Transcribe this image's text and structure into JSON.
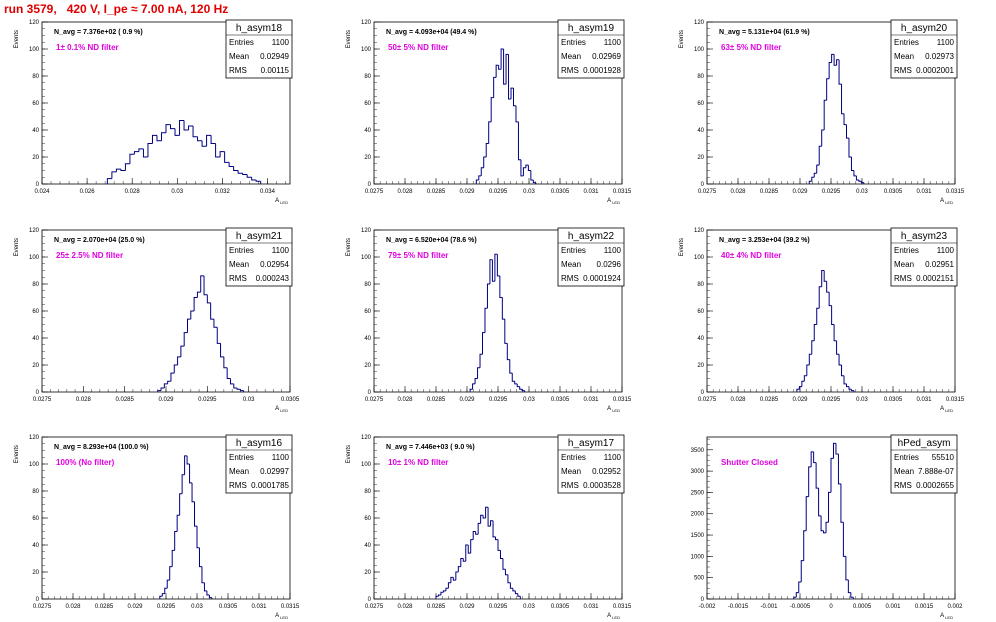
{
  "page": {
    "title": "run 3579,   420 V, I_pe ≈ 7.00 nA, 120 Hz"
  },
  "colors": {
    "histogram": "#000080",
    "annotation": "#e000e0",
    "title": "#e00000",
    "axis": "#000000"
  },
  "chart_data": [
    {
      "type": "bar",
      "histogram": "h_asym18",
      "xlabel": "A_LED",
      "ylabel": "Events",
      "xlim": [
        0.024,
        0.035
      ],
      "ylim": [
        0,
        120
      ],
      "xticks": [
        0.024,
        0.026,
        0.028,
        0.03,
        0.032,
        0.034
      ],
      "xticklabels": [
        "0.024",
        "0.026",
        "0.028",
        "0.03",
        "0.032",
        "0.034"
      ],
      "yticks": [
        0,
        20,
        40,
        60,
        80,
        100,
        120
      ],
      "navg": "N_avg = 7.376e+02 ( 0.9 %)",
      "filter": "1± 0.1% ND filter",
      "stats": {
        "entries": "1100",
        "mean": "0.02949",
        "rms": "0.00115"
      },
      "bins": {
        "start": 0.0269,
        "width": 0.0002,
        "values": [
          4,
          9,
          11,
          10,
          15,
          22,
          24,
          26,
          20,
          30,
          36,
          32,
          38,
          44,
          41,
          36,
          47,
          40,
          43,
          35,
          32,
          28,
          36,
          30,
          20,
          24,
          16,
          13,
          10,
          8,
          7,
          5,
          3,
          2
        ]
      }
    },
    {
      "type": "bar",
      "histogram": "h_asym19",
      "xlabel": "A_LED",
      "ylabel": "Events",
      "xlim": [
        0.0275,
        0.0315
      ],
      "ylim": [
        0,
        120
      ],
      "xticks": [
        0.0275,
        0.028,
        0.0285,
        0.029,
        0.0295,
        0.03,
        0.0305,
        0.031,
        0.0315
      ],
      "xticklabels": [
        "0.0275",
        "0.028",
        "0.0285",
        "0.029",
        "0.0295",
        "0.03",
        "0.0305",
        "0.031",
        "0.0315"
      ],
      "yticks": [
        0,
        20,
        40,
        60,
        80,
        100,
        120
      ],
      "navg": "N_avg = 4.093e+04 (49.4 %)",
      "filter": "50± 5% ND filter",
      "stats": {
        "entries": "1100",
        "mean": "0.02969",
        "rms": "0.0001928"
      },
      "bins": {
        "start": 0.02915,
        "width": 4e-05,
        "values": [
          3,
          6,
          12,
          20,
          30,
          46,
          64,
          79,
          88,
          85,
          100,
          74,
          96,
          63,
          71,
          58,
          46,
          18,
          6,
          12,
          14,
          10,
          3,
          1
        ]
      }
    },
    {
      "type": "bar",
      "histogram": "h_asym20",
      "xlabel": "A_LED",
      "ylabel": "Events",
      "xlim": [
        0.0275,
        0.0315
      ],
      "ylim": [
        0,
        120
      ],
      "xticks": [
        0.0275,
        0.028,
        0.0285,
        0.029,
        0.0295,
        0.03,
        0.0305,
        0.031,
        0.0315
      ],
      "xticklabels": [
        "0.0275",
        "0.028",
        "0.0285",
        "0.029",
        "0.0295",
        "0.03",
        "0.0305",
        "0.031",
        "0.0315"
      ],
      "yticks": [
        0,
        20,
        40,
        60,
        80,
        100,
        120
      ],
      "navg": "N_avg = 5.131e+04 (61.9 %)",
      "filter": "63± 5% ND filter",
      "stats": {
        "entries": "1100",
        "mean": "0.02973",
        "rms": "0.0002001"
      },
      "bins": {
        "start": 0.02915,
        "width": 4e-05,
        "values": [
          2,
          5,
          8,
          14,
          28,
          40,
          62,
          78,
          90,
          96,
          88,
          92,
          74,
          52,
          44,
          34,
          20,
          10,
          6,
          3,
          2,
          1
        ]
      }
    },
    {
      "type": "bar",
      "histogram": "h_asym21",
      "xlabel": "A_LED",
      "ylabel": "Events",
      "xlim": [
        0.0275,
        0.0305
      ],
      "ylim": [
        0,
        120
      ],
      "xticks": [
        0.0275,
        0.028,
        0.0285,
        0.029,
        0.0295,
        0.03,
        0.0305
      ],
      "xticklabels": [
        "0.0275",
        "0.028",
        "0.0285",
        "0.029",
        "0.0295",
        "0.03",
        "0.0305"
      ],
      "yticks": [
        0,
        20,
        40,
        60,
        80,
        100,
        120
      ],
      "navg": "N_avg = 2.070e+04 (25.0 %)",
      "filter": "25± 2.5% ND filter",
      "stats": {
        "entries": "1100",
        "mean": "0.02954",
        "rms": "0.000243"
      },
      "bins": {
        "start": 0.0289,
        "width": 4e-05,
        "values": [
          1,
          3,
          6,
          8,
          14,
          20,
          26,
          34,
          44,
          54,
          60,
          70,
          74,
          86,
          72,
          66,
          54,
          48,
          36,
          26,
          18,
          10,
          6,
          3,
          2,
          1
        ]
      }
    },
    {
      "type": "bar",
      "histogram": "h_asym22",
      "xlabel": "A_LED",
      "ylabel": "Events",
      "xlim": [
        0.0275,
        0.0315
      ],
      "ylim": [
        0,
        120
      ],
      "xticks": [
        0.0275,
        0.028,
        0.0285,
        0.029,
        0.0295,
        0.03,
        0.0305,
        0.031,
        0.0315
      ],
      "xticklabels": [
        "0.0275",
        "0.028",
        "0.0285",
        "0.029",
        "0.0295",
        "0.03",
        "0.0305",
        "0.031",
        "0.0315"
      ],
      "yticks": [
        0,
        20,
        40,
        60,
        80,
        100,
        120
      ],
      "navg": "N_avg = 6.520e+04 (78.6 %)",
      "filter": "79± 5% ND filter",
      "stats": {
        "entries": "1100",
        "mean": "0.0296",
        "rms": "0.0001924"
      },
      "bins": {
        "start": 0.02905,
        "width": 4e-05,
        "values": [
          2,
          6,
          10,
          18,
          28,
          44,
          62,
          80,
          98,
          82,
          102,
          86,
          70,
          54,
          36,
          24,
          14,
          8,
          6,
          4,
          2,
          1
        ]
      }
    },
    {
      "type": "bar",
      "histogram": "h_asym23",
      "xlabel": "A_LED",
      "ylabel": "Events",
      "xlim": [
        0.0275,
        0.0315
      ],
      "ylim": [
        0,
        120
      ],
      "xticks": [
        0.0275,
        0.028,
        0.0285,
        0.029,
        0.0295,
        0.03,
        0.0305,
        0.031,
        0.0315
      ],
      "xticklabels": [
        "0.0275",
        "0.028",
        "0.0285",
        "0.029",
        "0.0295",
        "0.03",
        "0.0305",
        "0.031",
        "0.0315"
      ],
      "yticks": [
        0,
        20,
        40,
        60,
        80,
        100,
        120
      ],
      "navg": "N_avg = 3.253e+04 (39.2 %)",
      "filter": "40± 4% ND filter",
      "stats": {
        "entries": "1100",
        "mean": "0.02951",
        "rms": "0.0002151"
      },
      "bins": {
        "start": 0.02895,
        "width": 4e-05,
        "values": [
          2,
          4,
          8,
          12,
          20,
          28,
          38,
          50,
          62,
          78,
          90,
          82,
          74,
          64,
          50,
          38,
          28,
          20,
          12,
          6,
          4,
          2,
          1
        ]
      }
    },
    {
      "type": "bar",
      "histogram": "h_asym16",
      "xlabel": "A_LED",
      "ylabel": "Events",
      "xlim": [
        0.0275,
        0.0315
      ],
      "ylim": [
        0,
        120
      ],
      "xticks": [
        0.0275,
        0.028,
        0.0285,
        0.029,
        0.0295,
        0.03,
        0.0305,
        0.031,
        0.0315
      ],
      "xticklabels": [
        "0.0275",
        "0.028",
        "0.0285",
        "0.029",
        "0.0295",
        "0.03",
        "0.0305",
        "0.031",
        "0.0315"
      ],
      "yticks": [
        0,
        20,
        40,
        60,
        80,
        100,
        120
      ],
      "navg": "N_avg = 8.293e+04 (100.0 %)",
      "filter": "100% (No filter)",
      "stats": {
        "entries": "1100",
        "mean": "0.02997",
        "rms": "0.0001785"
      },
      "bins": {
        "start": 0.0294,
        "width": 4e-05,
        "values": [
          2,
          4,
          8,
          14,
          24,
          36,
          50,
          62,
          78,
          92,
          106,
          100,
          86,
          72,
          54,
          38,
          24,
          12,
          6,
          3,
          1
        ]
      }
    },
    {
      "type": "bar",
      "histogram": "h_asym17",
      "xlabel": "A_LED",
      "ylabel": "Events",
      "xlim": [
        0.0275,
        0.0315
      ],
      "ylim": [
        0,
        120
      ],
      "xticks": [
        0.0275,
        0.028,
        0.0285,
        0.029,
        0.0295,
        0.03,
        0.0305,
        0.031,
        0.0315
      ],
      "xticklabels": [
        "0.0275",
        "0.028",
        "0.0285",
        "0.029",
        "0.0295",
        "0.03",
        "0.0305",
        "0.031",
        "0.0315"
      ],
      "yticks": [
        0,
        20,
        40,
        60,
        80,
        100,
        120
      ],
      "navg": "N_avg = 7.446e+03 ( 9.0 %)",
      "filter": "10± 1% ND filter",
      "stats": {
        "entries": "1100",
        "mean": "0.02952",
        "rms": "0.0003528"
      },
      "bins": {
        "start": 0.0285,
        "width": 4e-05,
        "values": [
          2,
          3,
          5,
          6,
          8,
          12,
          16,
          14,
          20,
          24,
          30,
          28,
          40,
          34,
          44,
          50,
          48,
          56,
          62,
          60,
          68,
          54,
          58,
          46,
          44,
          36,
          30,
          22,
          18,
          12,
          8,
          6,
          4,
          2
        ]
      }
    },
    {
      "type": "bar",
      "histogram": "hPed_asym",
      "xlabel": "A_LED",
      "ylabel": "",
      "xlim": [
        -0.002,
        0.002
      ],
      "ylim": [
        0,
        3800
      ],
      "xticks": [
        -0.002,
        -0.0015,
        -0.001,
        -0.0005,
        0,
        0.0005,
        0.001,
        0.0015,
        0.002
      ],
      "xticklabels": [
        "-0.002",
        "-0.0015",
        "-0.001",
        "-0.0005",
        "0",
        "0.0005",
        "0.001",
        "0.0015",
        "0.002"
      ],
      "yticks": [
        0,
        500,
        1000,
        1500,
        2000,
        2500,
        3000,
        3500
      ],
      "navg": "",
      "filter": "Shutter Closed",
      "stats": {
        "entries": "55510",
        "mean": "7.888e-07",
        "rms": "0.0002655"
      },
      "bins": {
        "start": -0.0006,
        "width": 4e-05,
        "values": [
          40,
          150,
          400,
          900,
          1600,
          2400,
          3100,
          3450,
          3200,
          2600,
          1950,
          1600,
          1550,
          1800,
          2500,
          3300,
          3650,
          3400,
          2700,
          1800,
          1000,
          450,
          150,
          40
        ]
      }
    }
  ]
}
